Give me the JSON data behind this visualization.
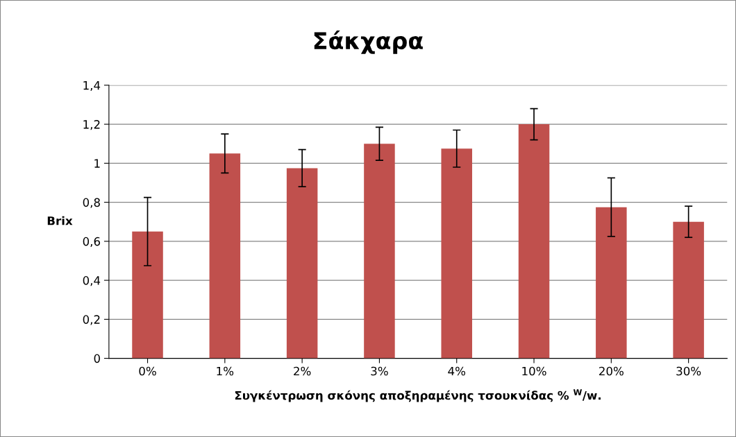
{
  "chart_data": {
    "type": "bar",
    "title": "Σάκχαρα",
    "xlabel": "Συγκέντρωση σκόνης αποξηραμένης τσουκνίδας % $^{W}$/w.",
    "ylabel": "Brix",
    "categories": [
      "0%",
      "1%",
      "2%",
      "3%",
      "4%",
      "10%",
      "20%",
      "30%"
    ],
    "values": [
      0.65,
      1.05,
      0.975,
      1.1,
      1.075,
      1.2,
      0.775,
      0.7
    ],
    "errors": [
      0.175,
      0.1,
      0.095,
      0.085,
      0.095,
      0.08,
      0.15,
      0.08
    ],
    "color": "#c0504d",
    "ylim": [
      0,
      1.4
    ],
    "yticks": [
      0,
      {
        "value": 0.2,
        "label": "0,2"
      },
      {
        "value": 0.4,
        "label": "0,4"
      },
      {
        "value": 0.6,
        "label": "0,6"
      },
      {
        "value": 0.8,
        "label": "0,8"
      },
      1,
      {
        "value": 1.2,
        "label": "1,2"
      },
      {
        "value": 1.4,
        "label": "1,4"
      }
    ],
    "grid": "y",
    "legend": false
  }
}
